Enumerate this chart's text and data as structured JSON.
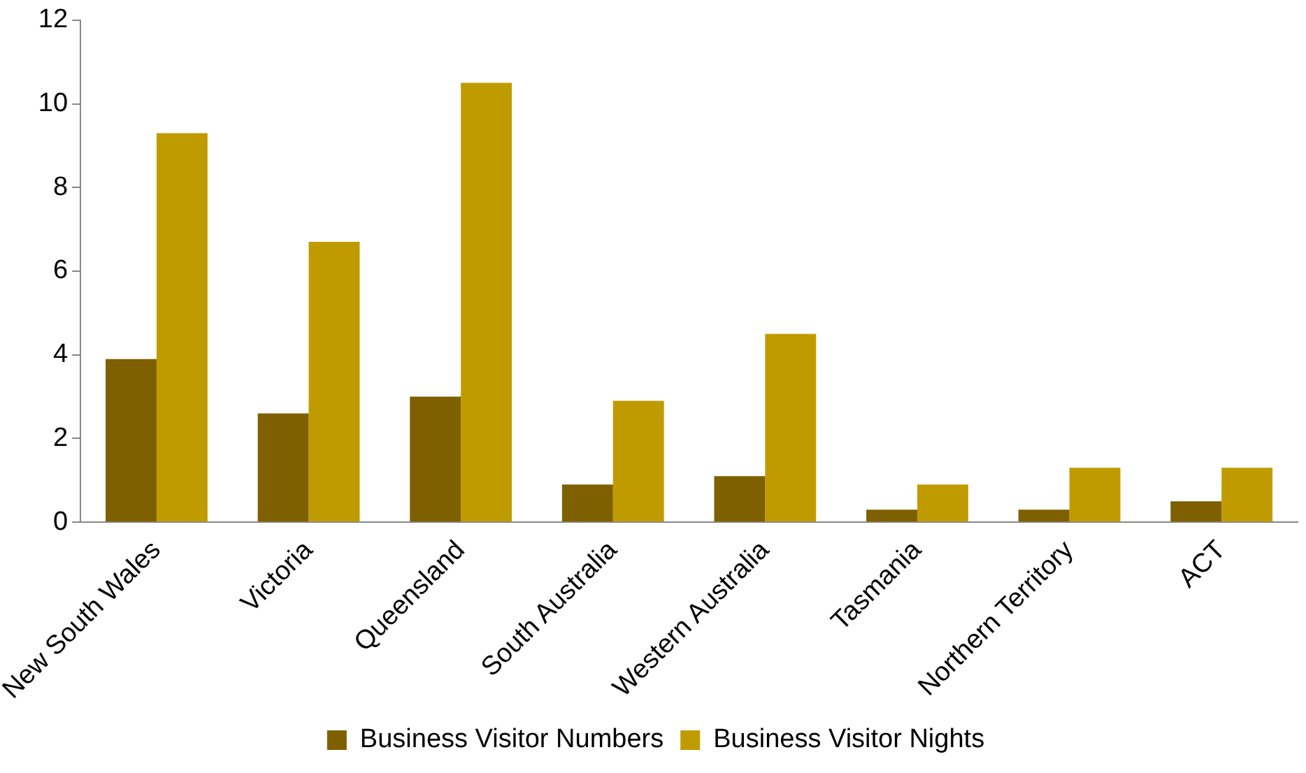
{
  "chart_data": {
    "type": "bar",
    "categories": [
      "New South Wales",
      "Victoria",
      "Queensland",
      "South Australia",
      "Western Australia",
      "Tasmania",
      "Northern Territory",
      "ACT"
    ],
    "series": [
      {
        "name": "Business Visitor Numbers",
        "color": "#7f6000",
        "values": [
          3.9,
          2.6,
          3.0,
          0.9,
          1.1,
          0.3,
          0.3,
          0.5
        ]
      },
      {
        "name": "Business Visitor Nights",
        "color": "#c09b00",
        "values": [
          9.3,
          6.7,
          10.5,
          2.9,
          4.5,
          0.9,
          1.3,
          1.3
        ]
      }
    ],
    "ylim": [
      0,
      12
    ],
    "yticks": [
      0,
      2,
      4,
      6,
      8,
      10,
      12
    ],
    "grid": false,
    "legend": "bottom"
  }
}
